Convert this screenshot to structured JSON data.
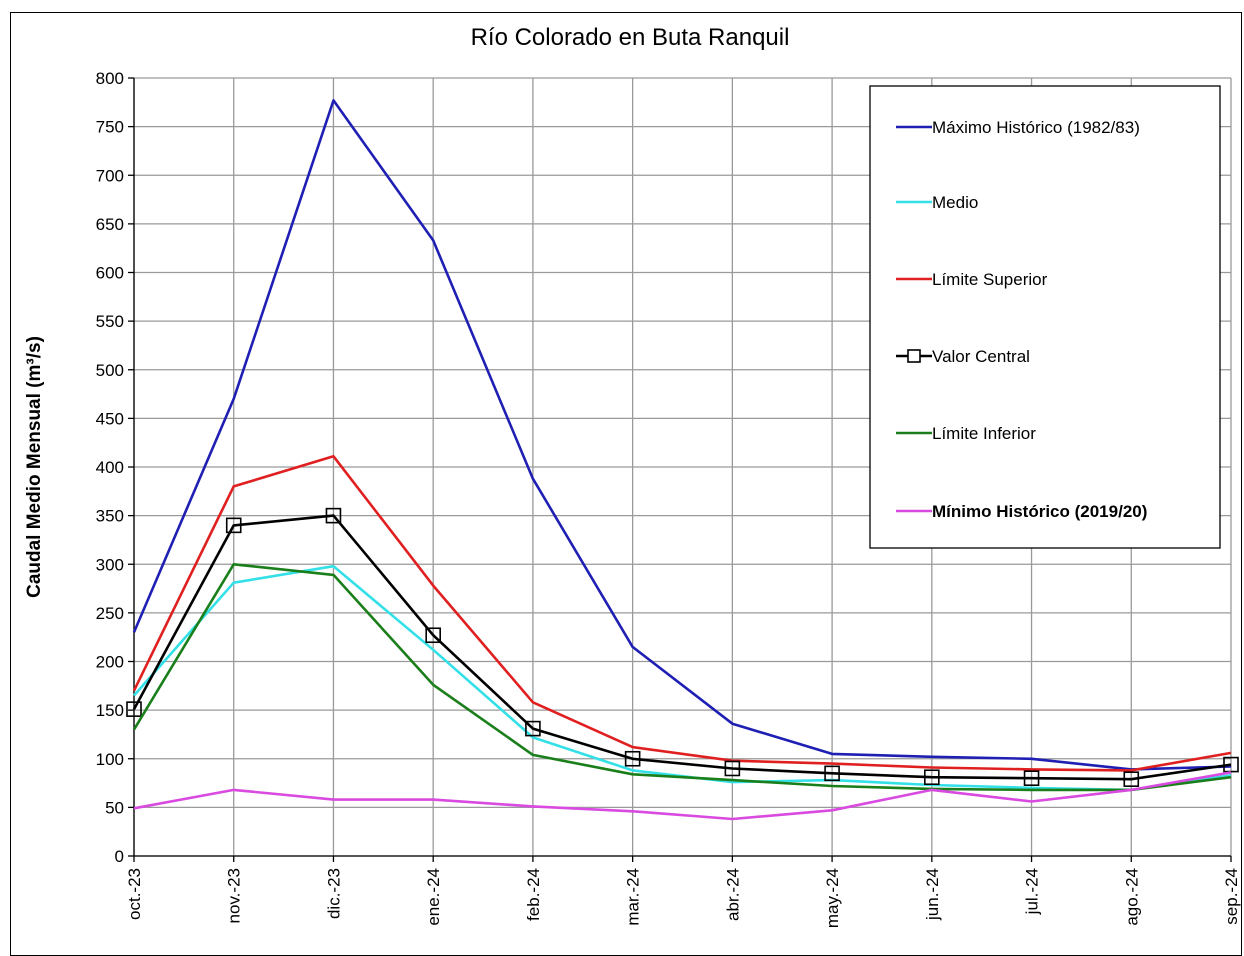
{
  "chart_data": {
    "type": "line",
    "title": "Río Colorado en Buta Ranquil",
    "ylabel": "Caudal Medio Mensual (m³/s)",
    "xlabel": "",
    "ylim": [
      0,
      800
    ],
    "yticks": [
      0,
      50,
      100,
      150,
      200,
      250,
      300,
      350,
      400,
      450,
      500,
      550,
      600,
      650,
      700,
      750,
      800
    ],
    "grid": true,
    "legend_position": "top-right",
    "categories": [
      "oct.-23",
      "nov.-23",
      "dic.-23",
      "ene.-24",
      "feb.-24",
      "mar.-24",
      "abr.-24",
      "may.-24",
      "jun.-24",
      "jul.-24",
      "ago.-24",
      "sep.-24"
    ],
    "series": [
      {
        "name": "Máximo Histórico (1982/83)",
        "color": "#1f1fb4",
        "marker": "none",
        "bold_label": false,
        "values": [
          230,
          470,
          777,
          633,
          388,
          215,
          136,
          105,
          102,
          100,
          89,
          92
        ]
      },
      {
        "name": "Medio",
        "color": "#33e0e8",
        "marker": "none",
        "bold_label": false,
        "values": [
          165,
          281,
          298,
          212,
          122,
          88,
          76,
          78,
          73,
          70,
          68,
          83
        ]
      },
      {
        "name": "Límite Superior",
        "color": "#e02020",
        "marker": "none",
        "bold_label": false,
        "values": [
          170,
          380,
          411,
          278,
          158,
          112,
          98,
          95,
          91,
          89,
          88,
          106
        ]
      },
      {
        "name": "Valor Central",
        "color": "#000000",
        "marker": "square",
        "bold_label": false,
        "values": [
          151,
          340,
          350,
          227,
          131,
          100,
          90,
          85,
          81,
          80,
          79,
          94
        ]
      },
      {
        "name": "Límite Inferior",
        "color": "#1a7f1a",
        "marker": "none",
        "bold_label": false,
        "values": [
          130,
          300,
          289,
          176,
          104,
          84,
          78,
          72,
          69,
          68,
          68,
          81
        ]
      },
      {
        "name": "Mínimo Histórico (2019/20)",
        "color": "#d94ae0",
        "marker": "none",
        "bold_label": true,
        "values": [
          49,
          68,
          58,
          58,
          51,
          46,
          38,
          47,
          68,
          56,
          68,
          86
        ]
      }
    ]
  }
}
